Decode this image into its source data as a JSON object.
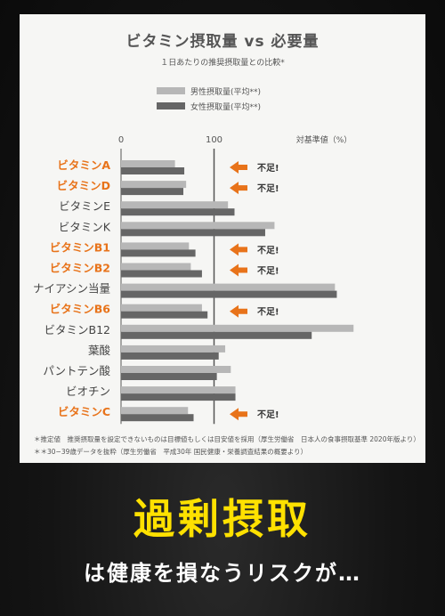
{
  "headline": "過剰摂取",
  "subline": "は健康を損なうリスクが…",
  "colors": {
    "male_bar": "#b7b7b7",
    "female_bar": "#666666",
    "deficient_label": "#e8731a",
    "normal_label": "#444444",
    "arrow": "#e8731a",
    "headline": "#ffe100"
  },
  "footnotes": [
    "＊推定値　推奨摂取量を設定できないものは目標値もしくは目安値を採用（厚生労働省　日本人の食事摂取基準 2020年版より）",
    "＊＊30−39歳データを抜粋（厚生労働省　平成30年 国民健康・栄養調査結果の概要より）"
  ],
  "chart_data": {
    "type": "bar",
    "orientation": "horizontal",
    "title": "ビタミン摂取量 vs 必要量",
    "subtitle": "１日あたりの推奨摂取量との比較*",
    "xlabel": "対基準値（%）",
    "xticks": [
      0,
      100
    ],
    "xlim": [
      0,
      260
    ],
    "reference_line": 100,
    "grid": false,
    "legend_position": "top-center",
    "series": [
      {
        "name": "男性摂取量(平均**)",
        "color": "#b7b7b7",
        "values": [
          58,
          70,
          115,
          165,
          73,
          75,
          230,
          87,
          250,
          112,
          118,
          123,
          72
        ]
      },
      {
        "name": "女性摂取量(平均**)",
        "color": "#666666",
        "values": [
          68,
          67,
          122,
          155,
          80,
          87,
          232,
          93,
          205,
          105,
          103,
          123,
          78
        ]
      }
    ],
    "categories": [
      {
        "label": "ビタミンA",
        "deficient": true
      },
      {
        "label": "ビタミンD",
        "deficient": true
      },
      {
        "label": "ビタミンE",
        "deficient": false
      },
      {
        "label": "ビタミンK",
        "deficient": false
      },
      {
        "label": "ビタミンB1",
        "deficient": true
      },
      {
        "label": "ビタミンB2",
        "deficient": true
      },
      {
        "label": "ナイアシン当量",
        "deficient": false
      },
      {
        "label": "ビタミンB6",
        "deficient": true
      },
      {
        "label": "ビタミンB12",
        "deficient": false
      },
      {
        "label": "葉酸",
        "deficient": false
      },
      {
        "label": "パントテン酸",
        "deficient": false
      },
      {
        "label": "ビオチン",
        "deficient": false
      },
      {
        "label": "ビタミンC",
        "deficient": true
      }
    ],
    "annotation_text": "不足!"
  }
}
